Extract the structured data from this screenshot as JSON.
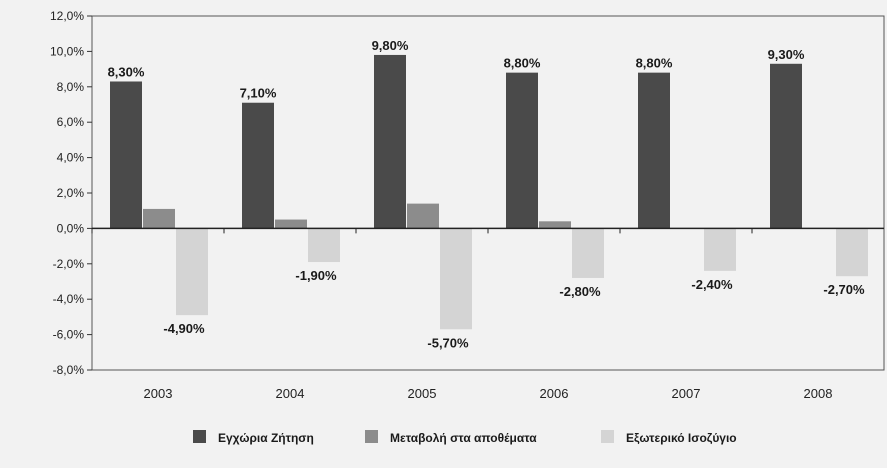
{
  "chart_data": {
    "type": "bar",
    "categories": [
      "2003",
      "2004",
      "2005",
      "2006",
      "2007",
      "2008"
    ],
    "series": [
      {
        "name": "Εγχώρια Ζήτηση",
        "color": "#4a4a4a",
        "values": [
          8.3,
          7.1,
          9.8,
          8.8,
          8.8,
          9.3
        ],
        "labels": [
          "8,30%",
          "7,10%",
          "9,80%",
          "8,80%",
          "8,80%",
          "9,30%"
        ]
      },
      {
        "name": "Μεταβολή στα αποθέματα",
        "color": "#8c8c8c",
        "values": [
          1.1,
          0.5,
          1.4,
          0.4,
          0.0,
          0.0
        ],
        "labels": [
          "",
          "",
          "",
          "",
          "",
          ""
        ]
      },
      {
        "name": "Εξωτερικό Ισοζύγιο",
        "color": "#d4d4d4",
        "values": [
          -4.9,
          -1.9,
          -5.7,
          -2.8,
          -2.4,
          -2.7
        ],
        "labels": [
          "-4,90%",
          "-1,90%",
          "-5,70%",
          "-2,80%",
          "-2,40%",
          "-2,70%"
        ]
      }
    ],
    "ylim": [
      -8,
      12
    ],
    "yticks": [
      12,
      10,
      8,
      6,
      4,
      2,
      0,
      -2,
      -4,
      -6,
      -8
    ],
    "ytick_labels": [
      "12,0%",
      "10,0%",
      "8,0%",
      "6,0%",
      "4,0%",
      "2,0%",
      "0,0%",
      "-2,0%",
      "-4,0%",
      "-6,0%",
      "-8,0%"
    ],
    "grid": false,
    "legend_position": "bottom"
  }
}
